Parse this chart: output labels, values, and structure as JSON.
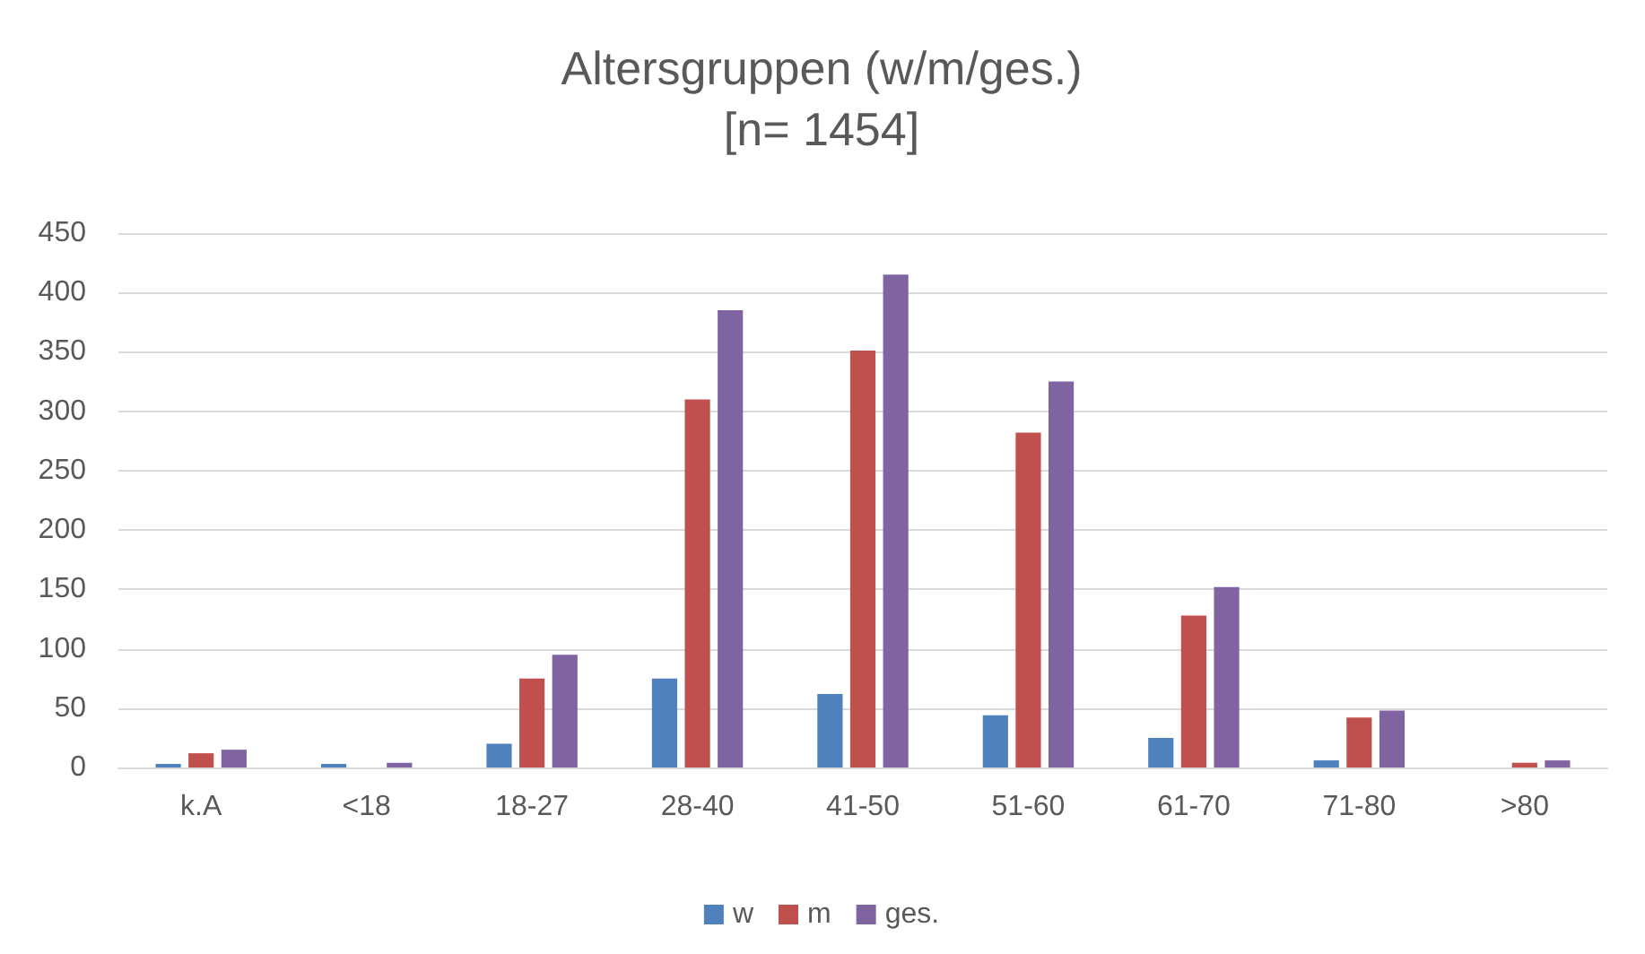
{
  "chart_data": {
    "type": "bar",
    "title": "Altersgruppen (w/m/ges.)\n[n= 1454]",
    "categories": [
      "k.A",
      "<18",
      "18-27",
      "28-40",
      "41-50",
      "51-60",
      "61-70",
      "71-80",
      ">80"
    ],
    "series": [
      {
        "name": "w",
        "color": "#4f81bd",
        "values": [
          3,
          3,
          20,
          75,
          62,
          44,
          25,
          6,
          0
        ]
      },
      {
        "name": "m",
        "color": "#c0504d",
        "values": [
          12,
          0,
          75,
          310,
          351,
          282,
          128,
          42,
          4
        ]
      },
      {
        "name": "ges.",
        "color": "#8064a2",
        "values": [
          15,
          4,
          95,
          385,
          415,
          325,
          152,
          48,
          6
        ]
      }
    ],
    "ylim": [
      0,
      450
    ],
    "yticks": [
      0,
      50,
      100,
      150,
      200,
      250,
      300,
      350,
      400,
      450
    ],
    "grid": "y",
    "legend": "bottom"
  }
}
